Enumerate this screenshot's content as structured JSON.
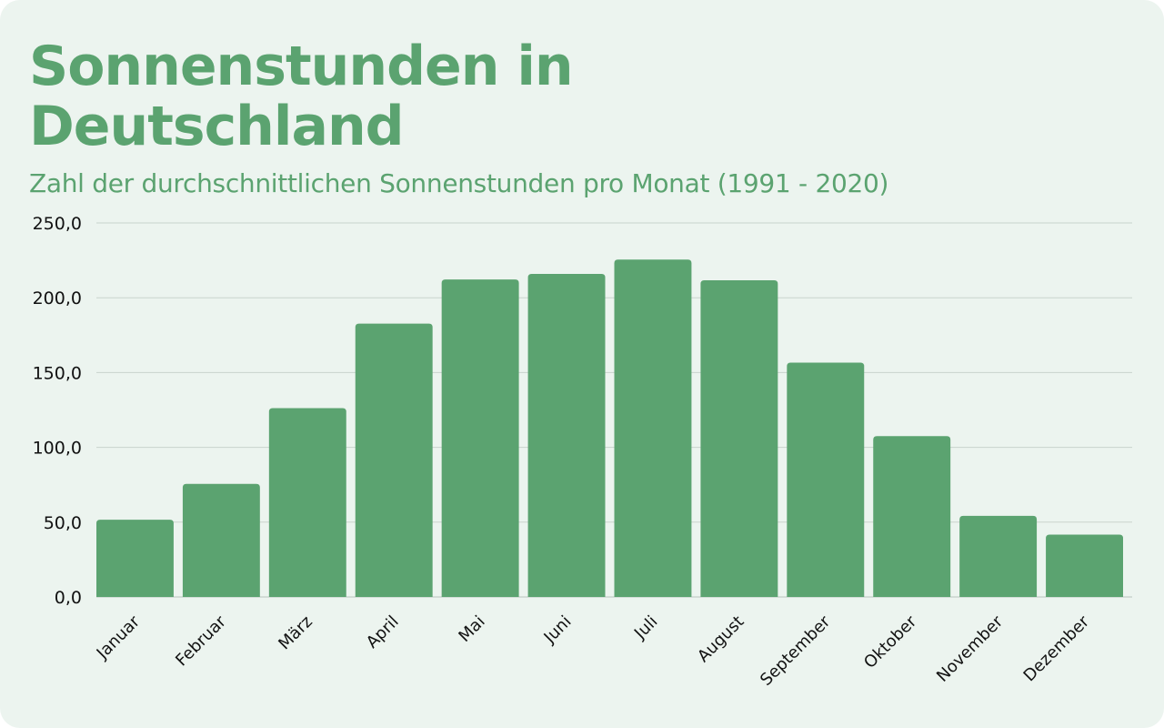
{
  "chart_data": {
    "type": "bar",
    "title": "Sonnenstunden in Deutschland",
    "subtitle": "Zahl der durchschnittlichen Sonnenstunden pro Monat (1991 - 2020)",
    "categories": [
      "Januar",
      "Februar",
      "März",
      "April",
      "Mai",
      "Juni",
      "Juli",
      "August",
      "September",
      "Oktober",
      "November",
      "Dezember"
    ],
    "values": [
      51.6,
      75.6,
      126.2,
      182.7,
      212.2,
      215.9,
      225.5,
      211.7,
      156.6,
      107.5,
      54.2,
      41.7
    ],
    "ylim": [
      0,
      250
    ],
    "yticks": [
      "0,0",
      "50,0",
      "100,0",
      "150,0",
      "200,0",
      "250,0"
    ],
    "ytick_values": [
      0,
      50,
      100,
      150,
      200,
      250
    ],
    "grid": true,
    "colors": {
      "bar": "#5ba370",
      "title": "#5ba370",
      "grid": "#c9d3cd",
      "background": "#ecf4ef"
    }
  }
}
